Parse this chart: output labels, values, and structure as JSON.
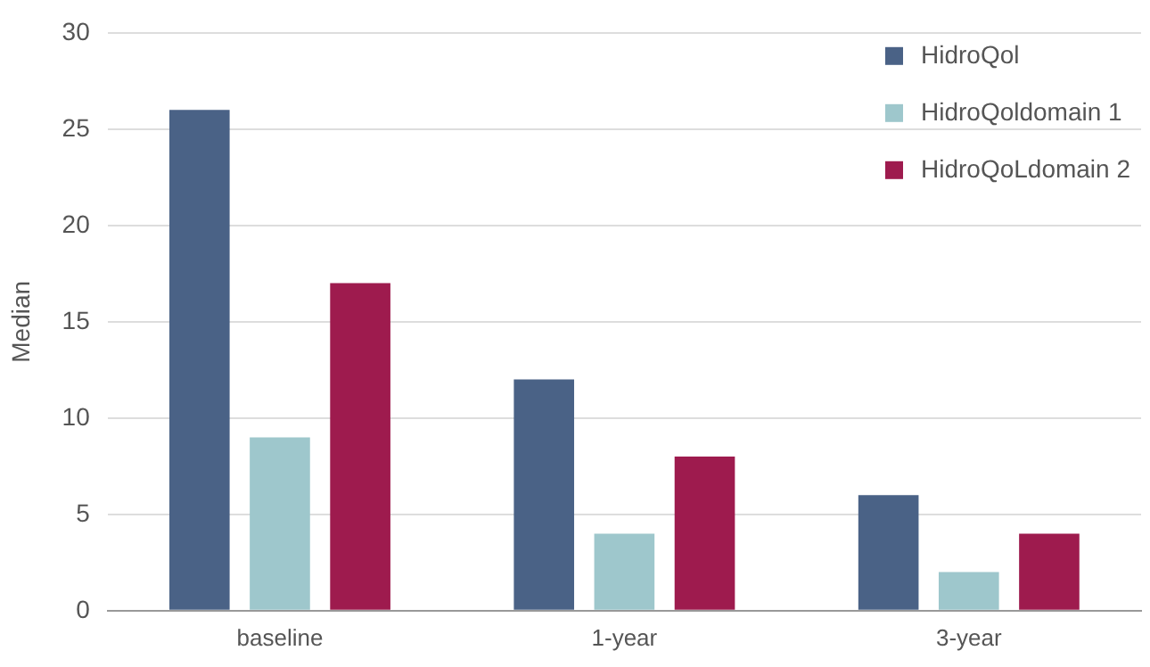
{
  "chart_data": {
    "type": "bar",
    "ylabel": "Median",
    "categories": [
      "baseline",
      "1-year",
      "3-year"
    ],
    "series": [
      {
        "name": "HidroQol",
        "color": "#4a6286",
        "values": [
          26,
          12,
          6
        ]
      },
      {
        "name": "HidroQoldomain 1",
        "color": "#9ec7cc",
        "values": [
          9,
          4,
          2
        ]
      },
      {
        "name": "HidroQoLdomain 2",
        "color": "#9e1b4e",
        "values": [
          17,
          8,
          4
        ]
      }
    ],
    "ylim": [
      0,
      30
    ],
    "yticks": [
      0,
      5,
      10,
      15,
      20,
      25,
      30
    ],
    "grid": "y",
    "legend": "top right"
  }
}
